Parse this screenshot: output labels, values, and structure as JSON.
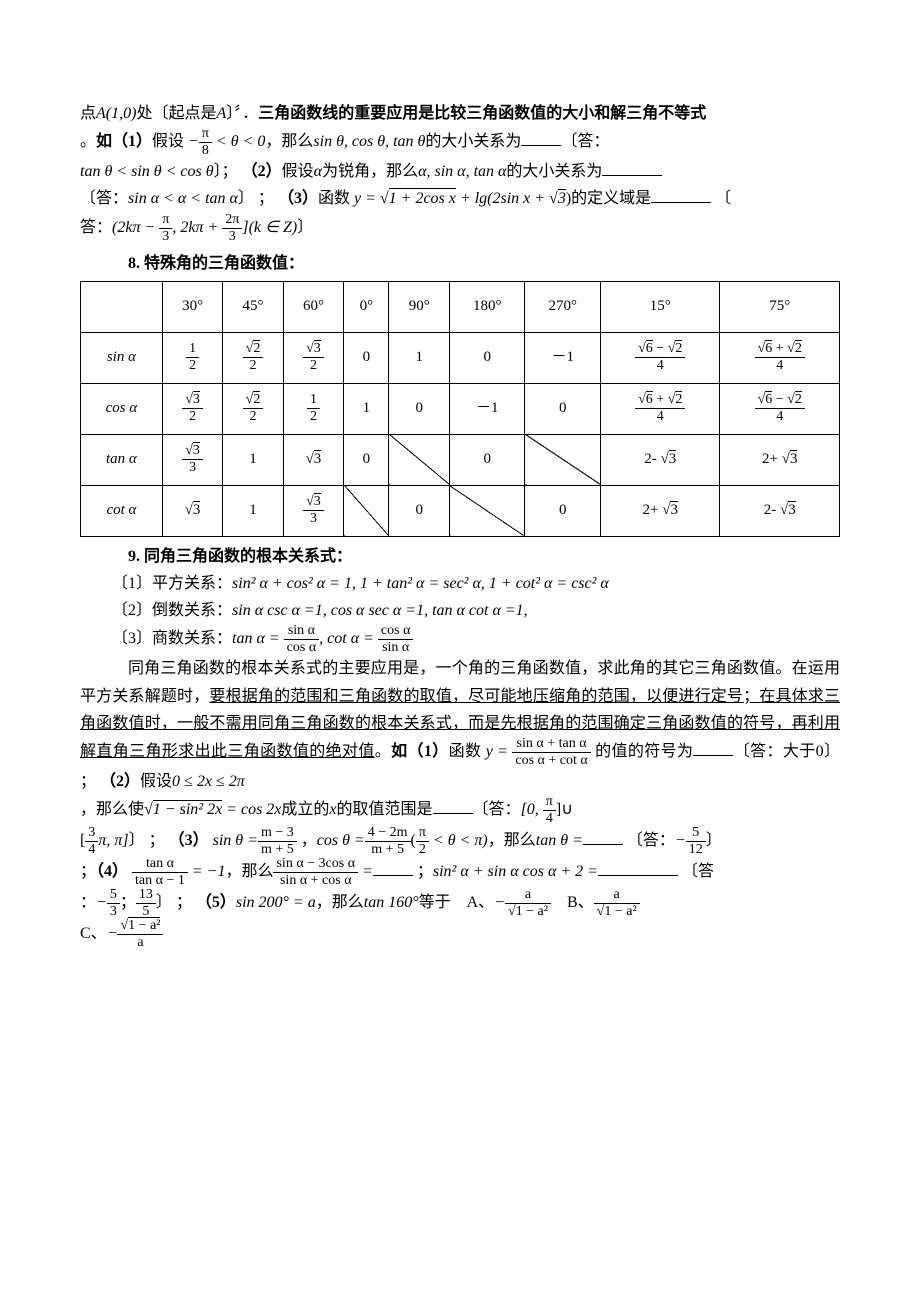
{
  "intro": {
    "line1_pre": "点",
    "line1_point": "A(1,0)",
    "line1_mid": "处〔起点是",
    "line1_A": "A",
    "line1_post": "〕〞．",
    "line1_bold": "三角函数线的重要应用是比较三角函数值的大小和解三角不等式",
    "line2_pre": "。",
    "line2_bold1": "如（1）",
    "line2_seg1": "假设",
    "line2_math1_pre": "−",
    "line2_math1_num": "π",
    "line2_math1_den": "8",
    "line2_math1_mid": " < θ < 0",
    "line2_seg2": "，那么",
    "line2_math2": "sin θ, cos θ, tan θ",
    "line2_seg3": "的大小关系为",
    "line2_ans_label": "〔答：",
    "line3_math": "tan θ < sin θ < cos θ",
    "line3_close": "〕；",
    "line3_bold2": "（2）",
    "line3_seg1": "假设",
    "line3_var": "α",
    "line3_seg2": "为锐角，那么",
    "line3_math2": "α, sin α, tan α",
    "line3_seg3": "的大小关系为",
    "line4_ans_pre": "〔答：",
    "line4_math": "sin α < α < tan α",
    "line4_close": "〕 ；",
    "line4_bold3": "（3）",
    "line4_seg1": "函数",
    "line4_fn_y": "y = ",
    "line4_fn_rad": "1 + 2cos x",
    "line4_fn_plus": " + lg(2sin x + ",
    "line4_fn_r3": "3",
    "line4_fn_close": ")",
    "line4_seg2": "的定义域是",
    "line4_open": "〔",
    "line5_pre": "答：",
    "line5_int_pre": "(2kπ − ",
    "line5_f1_num": "π",
    "line5_f1_den": "3",
    "line5_int_mid": ", 2kπ + ",
    "line5_f2_num": "2π",
    "line5_f2_den": "3",
    "line5_int_post": "](k ∈ Z)",
    "line5_close": "〕"
  },
  "section8_title": "8. 特殊角的三角函数值：",
  "table": {
    "columns_deg": [
      "30°",
      "45°",
      "60°",
      "0°",
      "90°",
      "180°",
      "270°",
      "15°",
      "75°"
    ],
    "rows": {
      "sin": {
        "label": "sin α",
        "cells": [
          {
            "type": "frac",
            "num": "1",
            "den": "2"
          },
          {
            "type": "frac",
            "num": "√2",
            "den": "2"
          },
          {
            "type": "frac",
            "num": "√3",
            "den": "2"
          },
          {
            "type": "plain",
            "val": "0"
          },
          {
            "type": "plain",
            "val": "1"
          },
          {
            "type": "plain",
            "val": "0"
          },
          {
            "type": "plain",
            "val": "－1"
          },
          {
            "type": "frac",
            "num": "√6 − √2",
            "den": "4"
          },
          {
            "type": "frac",
            "num": "√6 + √2",
            "den": "4"
          }
        ]
      },
      "cos": {
        "label": "cos α",
        "cells": [
          {
            "type": "frac",
            "num": "√3",
            "den": "2"
          },
          {
            "type": "frac",
            "num": "√2",
            "den": "2"
          },
          {
            "type": "frac",
            "num": "1",
            "den": "2"
          },
          {
            "type": "plain",
            "val": "1"
          },
          {
            "type": "plain",
            "val": "0"
          },
          {
            "type": "plain",
            "val": "－1"
          },
          {
            "type": "plain",
            "val": "0"
          },
          {
            "type": "frac",
            "num": "√6 + √2",
            "den": "4"
          },
          {
            "type": "frac",
            "num": "√6 − √2",
            "den": "4"
          }
        ]
      },
      "tan": {
        "label": "tan α",
        "cells": [
          {
            "type": "frac",
            "num": "√3",
            "den": "3"
          },
          {
            "type": "plain",
            "val": "1"
          },
          {
            "type": "plain",
            "val": "√3"
          },
          {
            "type": "plain",
            "val": "0"
          },
          {
            "type": "diag"
          },
          {
            "type": "plain",
            "val": "0"
          },
          {
            "type": "diag"
          },
          {
            "type": "plain",
            "val": "2- √3"
          },
          {
            "type": "plain",
            "val": "2+ √3"
          }
        ]
      },
      "cot": {
        "label": "cot α",
        "cells": [
          {
            "type": "plain",
            "val": "√3"
          },
          {
            "type": "plain",
            "val": "1"
          },
          {
            "type": "frac",
            "num": "√3",
            "den": "3"
          },
          {
            "type": "diag"
          },
          {
            "type": "plain",
            "val": "0"
          },
          {
            "type": "diag"
          },
          {
            "type": "plain",
            "val": "0"
          },
          {
            "type": "plain",
            "val": "2+ √3"
          },
          {
            "type": "plain",
            "val": "2- √3"
          }
        ]
      }
    }
  },
  "section9_title": "9. 同角三角函数的根本关系式：",
  "rel1_label": "〔1〕平方关系：",
  "rel1_math": "sin² α + cos² α = 1, 1 + tan² α = sec² α, 1 + cot² α = csc² α",
  "rel2_label": "〔2〕倒数关系：",
  "rel2_math": "sin α csc α =1, cos α sec α =1, tan α cot α =1,",
  "rel3_label": "〔3〕商数关系：",
  "rel3_tan": "tan α =",
  "rel3_f1_num": "sin α",
  "rel3_f1_den": "cos α",
  "rel3_cot": ", cot α =",
  "rel3_f2_num": "cos α",
  "rel3_f2_den": "sin α",
  "para": {
    "p1": "同角三角函数的根本关系式的主要应用是，一个角的三角函数值，求此角的其它三角函数值。在运用平方关系解题时，",
    "p1_u": "要根据角的范围和三角函数的取值，尽可能地压缩角的范围，以便进行定号；在具体求三角函数值时，一般不需用同角三角函数的根本关系式，而是先根据角的范围确定三角函数值的符号，再利用解直角三角形求出此三角函数值的绝对值",
    "q1_bold": "如（1）",
    "q1_pre": "函数 ",
    "q1_y": "y =",
    "q1_num": "sin α + tan α",
    "q1_den": "cos α + cot α",
    "q1_mid": " 的值的符号为",
    "q1_ans": "〔答：大于0〕 ；",
    "q2_bold": "（2）",
    "q2_pre": "假设",
    "q2_cond": "0 ≤ 2x ≤ 2π",
    "q2_line2_pre": "，那么使",
    "q2_rad": "1 − sin² 2x",
    "q2_eq": " = cos 2x",
    "q2_mid": "成立的",
    "q2_x": "x",
    "q2_post": "的取值范围是",
    "q2_ans_pre": "〔答：",
    "q2_ans1_pre": "[0, ",
    "q2_ans1_num": "π",
    "q2_ans1_den": "4",
    "q2_ans1_post": "]",
    "q2_union": "∪",
    "q2_ans2_pre": "[",
    "q2_ans2_num": "3",
    "q2_ans2_den": "4",
    "q2_ans2_pi": "π, π]",
    "q2_close": "〕 ；",
    "q3_bold": "（3）",
    "q3_sin": "sin θ =",
    "q3_f1_num": "m − 3",
    "q3_f1_den": "m + 5",
    "q3_comma": " ，",
    "q3_cos": "cos θ =",
    "q3_f2_num": "4 − 2m",
    "q3_f2_den": "m + 5",
    "q3_cond_open": "(",
    "q3_cond_num": "π",
    "q3_cond_den": "2",
    "q3_cond_mid": " < θ < π)",
    "q3_mid": "，那么",
    "q3_tan": "tan θ =",
    "q3_ans_pre": "〔答：",
    "q3_ans_neg": "−",
    "q3_ans_num": "5",
    "q3_ans_den": "12",
    "q3_close": "〕",
    "q4_pre": "；",
    "q4_bold": "（4）",
    "q4_f1_num": "tan α",
    "q4_f1_den": "tan α − 1",
    "q4_eq1": " = −1",
    "q4_mid1": "，那么",
    "q4_f2_num": "sin α − 3cos α",
    "q4_f2_den": "sin α + cos α",
    "q4_eq2": " =",
    "q4_semi": " ；",
    "q4_expr2": "sin² α + sin α cos α + 2 =",
    "q4_ans_open": "〔答",
    "q4_ans_pre": "：",
    "q4_a1_neg": "−",
    "q4_a1_num": "5",
    "q4_a1_den": "3",
    "q4_sep": "；",
    "q4_a2_num": "13",
    "q4_a2_den": "5",
    "q4_close": "〕 ；",
    "q5_bold": "（5）",
    "q5_sin": "sin 200° = a",
    "q5_mid": "，那么",
    "q5_tan": "tan 160°",
    "q5_eq": "等于",
    "optA_label": "A、",
    "optA_neg": "−",
    "optA_num": "a",
    "optA_den_pre": "√",
    "optA_den": "1 − a²",
    "optB_label": "B、",
    "optB_num": "a",
    "optB_den_pre": "√",
    "optB_den": "1 − a²",
    "optC_label": "C、",
    "optC_neg": "−",
    "optC_num_pre": "√",
    "optC_num": "1 − a²",
    "optC_den": "a"
  },
  "colors": {
    "text": "#000000",
    "bg": "#ffffff",
    "border": "#000000"
  }
}
